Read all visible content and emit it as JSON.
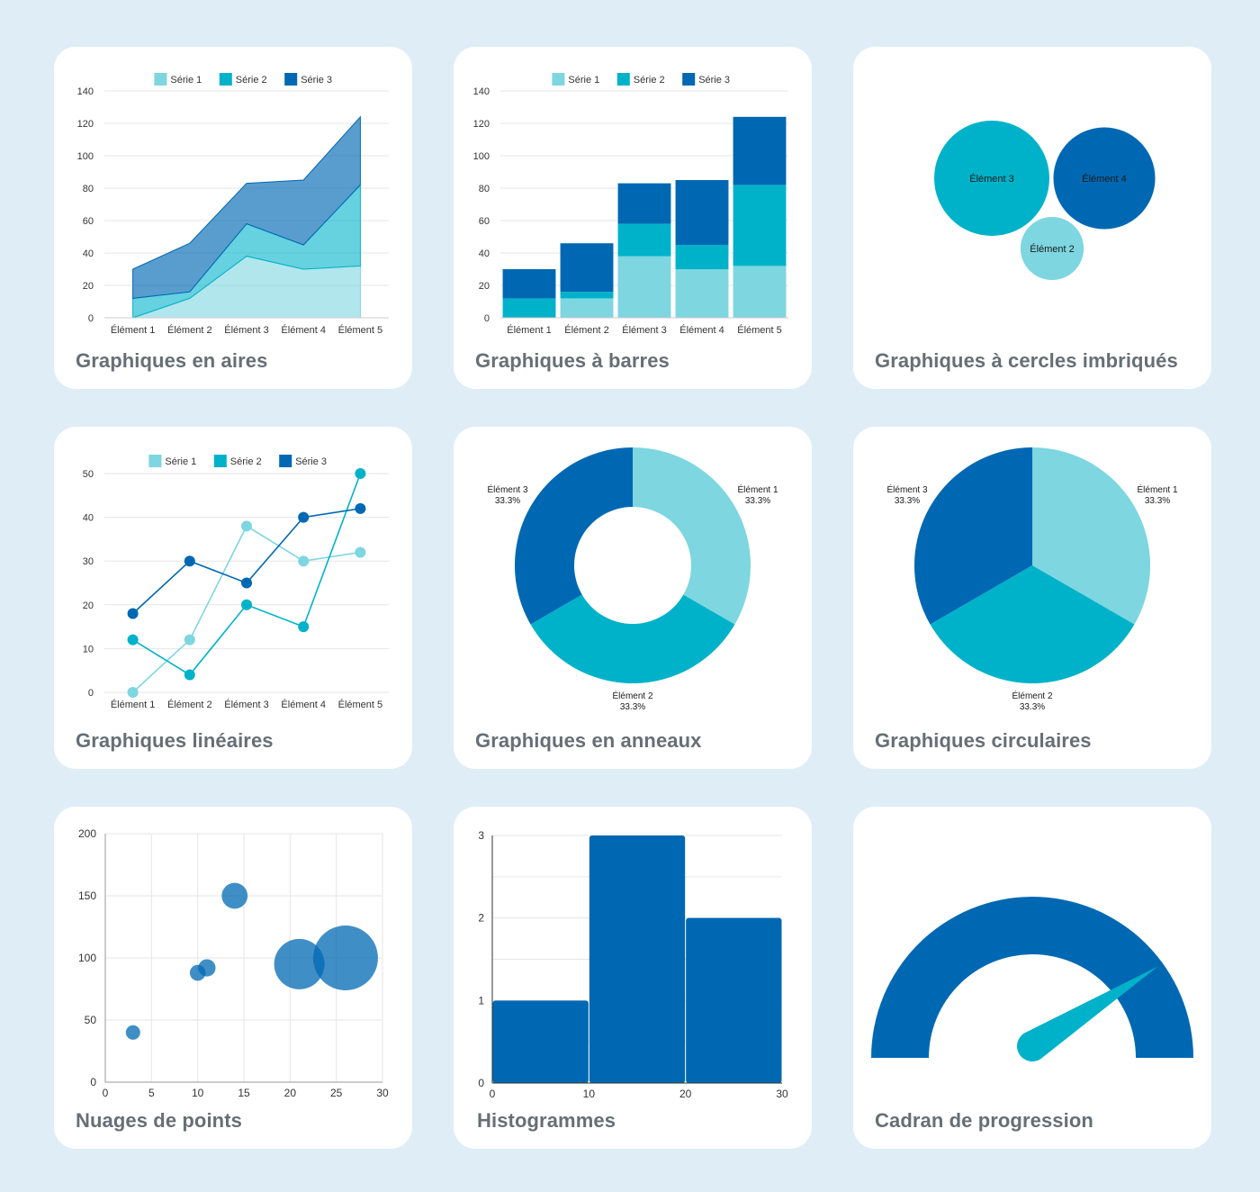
{
  "colors": {
    "s1": "#7dd6e0",
    "s2": "#00b2c9",
    "s3": "#0068b3",
    "grid": "#e6e6e6",
    "axis": "#cccccc",
    "text": "#333333",
    "title": "#666f76"
  },
  "legend": [
    "Série 1",
    "Série 2",
    "Série 3"
  ],
  "cards": {
    "area": {
      "title": "Graphiques en aires"
    },
    "bar": {
      "title": "Graphiques à barres"
    },
    "bubble": {
      "title": "Graphiques à cercles imbriqués"
    },
    "line": {
      "title": "Graphiques linéaires"
    },
    "donut": {
      "title": "Graphiques en anneaux"
    },
    "pie": {
      "title": "Graphiques circulaires"
    },
    "scatter": {
      "title": "Nuages de points"
    },
    "hist": {
      "title": "Histogrammes"
    },
    "gauge": {
      "title": "Cadran de progression"
    }
  },
  "chart_data": [
    {
      "id": "area",
      "type": "area",
      "stacked": true,
      "categories": [
        "Élément 1",
        "Élément 2",
        "Élément 3",
        "Élément 4",
        "Élément 5"
      ],
      "series": [
        {
          "name": "Série 1",
          "values": [
            0,
            12,
            38,
            30,
            32
          ]
        },
        {
          "name": "Série 2",
          "values": [
            12,
            4,
            20,
            15,
            50
          ]
        },
        {
          "name": "Série 3",
          "values": [
            18,
            30,
            25,
            40,
            42
          ]
        }
      ],
      "ylim": [
        0,
        140
      ],
      "yticks": [
        0,
        20,
        40,
        60,
        80,
        100,
        120,
        140
      ],
      "legend": "top",
      "grid": true
    },
    {
      "id": "bar",
      "type": "bar",
      "stacked": true,
      "categories": [
        "Élément 1",
        "Élément 2",
        "Élément 3",
        "Élément 4",
        "Élément 5"
      ],
      "series": [
        {
          "name": "Série 1",
          "values": [
            0,
            12,
            38,
            30,
            32
          ]
        },
        {
          "name": "Série 2",
          "values": [
            12,
            4,
            20,
            15,
            50
          ]
        },
        {
          "name": "Série 3",
          "values": [
            18,
            30,
            25,
            40,
            42
          ]
        }
      ],
      "ylim": [
        0,
        140
      ],
      "yticks": [
        0,
        20,
        40,
        60,
        80,
        100,
        120,
        140
      ],
      "legend": "top",
      "grid": true
    },
    {
      "id": "bubble",
      "type": "packed-bubble",
      "items": [
        {
          "label": "Élément 3",
          "value": 1.0
        },
        {
          "label": "Élément 4",
          "value": 0.78
        },
        {
          "label": "Élément 2",
          "value": 0.3
        }
      ]
    },
    {
      "id": "line",
      "type": "line",
      "categories": [
        "Élément 1",
        "Élément 2",
        "Élément 3",
        "Élément 4",
        "Élément 5"
      ],
      "series": [
        {
          "name": "Série 1",
          "values": [
            0,
            12,
            38,
            30,
            32
          ]
        },
        {
          "name": "Série 2",
          "values": [
            12,
            4,
            20,
            15,
            50
          ]
        },
        {
          "name": "Série 3",
          "values": [
            18,
            30,
            25,
            40,
            42
          ]
        }
      ],
      "ylim": [
        0,
        50
      ],
      "yticks": [
        0,
        10,
        20,
        30,
        40,
        50
      ],
      "legend": "top",
      "grid": true
    },
    {
      "id": "donut",
      "type": "pie",
      "donut": true,
      "slices": [
        {
          "label": "Élément 1",
          "pct": "33.3%",
          "value": 33.3
        },
        {
          "label": "Élément 2",
          "pct": "33.3%",
          "value": 33.3
        },
        {
          "label": "Élément 3",
          "pct": "33.3%",
          "value": 33.3
        }
      ]
    },
    {
      "id": "pie",
      "type": "pie",
      "donut": false,
      "slices": [
        {
          "label": "Élément 1",
          "pct": "33.3%",
          "value": 33.3
        },
        {
          "label": "Élément 2",
          "pct": "33.3%",
          "value": 33.3
        },
        {
          "label": "Élément 3",
          "pct": "33.3%",
          "value": 33.3
        }
      ]
    },
    {
      "id": "scatter",
      "type": "scatter",
      "points": [
        {
          "x": 3,
          "y": 40,
          "r": 1
        },
        {
          "x": 10,
          "y": 88,
          "r": 1.1
        },
        {
          "x": 11,
          "y": 92,
          "r": 1.2
        },
        {
          "x": 14,
          "y": 150,
          "r": 1.8
        },
        {
          "x": 21,
          "y": 95,
          "r": 3.5
        },
        {
          "x": 26,
          "y": 100,
          "r": 4.5
        }
      ],
      "xlim": [
        0,
        30
      ],
      "xticks": [
        0,
        5,
        10,
        15,
        20,
        25,
        30
      ],
      "ylim": [
        0,
        200
      ],
      "yticks": [
        0,
        50,
        100,
        150,
        200
      ],
      "grid": true
    },
    {
      "id": "hist",
      "type": "histogram",
      "bins": [
        {
          "from": 0,
          "to": 10,
          "count": 1
        },
        {
          "from": 10,
          "to": 20,
          "count": 3
        },
        {
          "from": 20,
          "to": 30,
          "count": 2
        }
      ],
      "xticks": [
        0,
        10,
        20,
        30
      ],
      "ylim": [
        0,
        3
      ],
      "yticks": [
        0,
        1,
        2,
        3
      ],
      "grid": true
    },
    {
      "id": "gauge",
      "type": "gauge",
      "value": 0.82,
      "min": 0,
      "max": 1
    }
  ]
}
